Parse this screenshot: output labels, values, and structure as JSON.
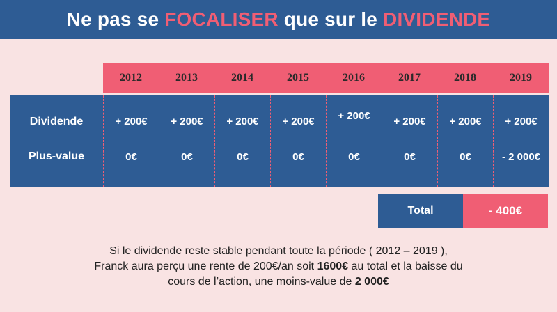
{
  "header": {
    "title_part1": "Ne pas se ",
    "title_highlight1": "FOCALISER",
    "title_part2": " que sur le ",
    "title_highlight2": "DIVIDENDE"
  },
  "table": {
    "years": [
      "2012",
      "2013",
      "2014",
      "2015",
      "2016",
      "2017",
      "2018",
      "2019"
    ],
    "row_labels": {
      "dividend": "Dividende",
      "capital_gain": "Plus-value"
    },
    "dividend_values": [
      "+ 200€",
      "+ 200€",
      "+ 200€",
      "+ 200€",
      "+ 200€",
      "+ 200€",
      "+ 200€",
      "+ 200€"
    ],
    "capital_gain_values": [
      "0€",
      "0€",
      "0€",
      "0€",
      "0€",
      "0€",
      "0€",
      "- 2 000€"
    ]
  },
  "total": {
    "label": "Total",
    "value": "- 400€"
  },
  "conclusion": {
    "line1": "Si le dividende reste stable pendant toute la période ( 2012 – 2019 ),",
    "line2_a": "Franck aura perçu une rente de 200€/an soit ",
    "line2_b": "1600€",
    "line2_c": " au total et la baisse du",
    "line3_a": "cours de l’action, une moins-value de ",
    "line3_b": "2 000€"
  },
  "colors": {
    "navy": "#2e5c94",
    "pink": "#f05e74",
    "background": "#f9e3e3"
  }
}
